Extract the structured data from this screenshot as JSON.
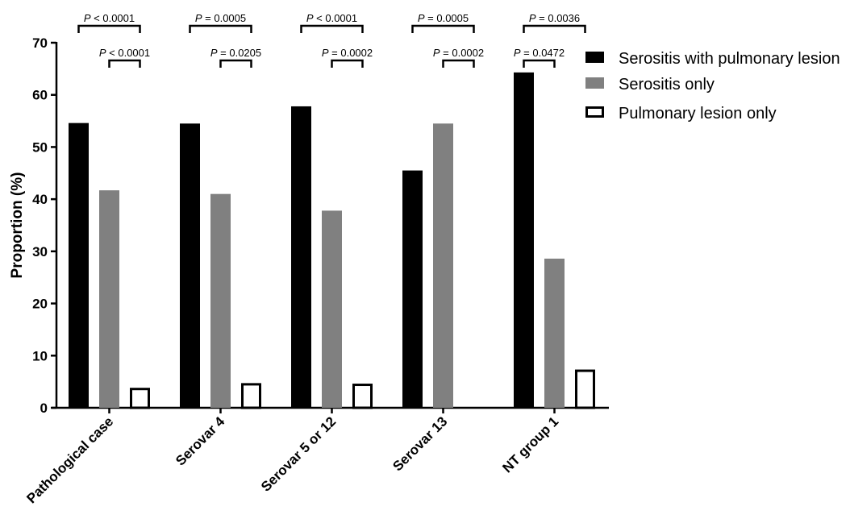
{
  "chart_data": {
    "type": "bar",
    "title": "",
    "xlabel": "",
    "ylabel": "Proportion (%)",
    "ylim": [
      0,
      70
    ],
    "yticks": [
      0,
      10,
      20,
      30,
      40,
      50,
      60,
      70
    ],
    "grid": false,
    "legend_position": "top-right",
    "categories": [
      "Pathological case",
      "Serovar 4",
      "Serovar 5 or 12",
      "Serovar 13",
      "NT group 1"
    ],
    "series": [
      {
        "name": "Serositis with pulmonary lesion",
        "values": [
          54.6,
          54.5,
          57.8,
          45.5,
          64.3
        ],
        "color": "#000000",
        "style": "filled"
      },
      {
        "name": "Serositis only",
        "values": [
          41.7,
          41.0,
          37.8,
          54.5,
          28.6
        ],
        "color": "#808080",
        "style": "filled"
      },
      {
        "name": "Pulmonary lesion only",
        "values": [
          3.6,
          4.5,
          4.4,
          0,
          7.1
        ],
        "color": "#000000",
        "style": "outline"
      }
    ],
    "annotations": [
      {
        "category": 0,
        "from": 0,
        "to": 2,
        "level": "upper",
        "italic": "P",
        "rest": " < 0.0001"
      },
      {
        "category": 0,
        "from": 1,
        "to": 2,
        "level": "lower",
        "italic": "P",
        "rest": " < 0.0001"
      },
      {
        "category": 1,
        "from": 0,
        "to": 2,
        "level": "upper",
        "italic": "P",
        "rest": " = 0.0005"
      },
      {
        "category": 1,
        "from": 1,
        "to": 2,
        "level": "lower",
        "italic": "P",
        "rest": " = 0.0205"
      },
      {
        "category": 2,
        "from": 0,
        "to": 2,
        "level": "upper",
        "italic": "P",
        "rest": " < 0.0001"
      },
      {
        "category": 2,
        "from": 1,
        "to": 2,
        "level": "lower",
        "italic": "P",
        "rest": " = 0.0002"
      },
      {
        "category": 3,
        "from": 0,
        "to": 2,
        "level": "upper",
        "italic": "P",
        "rest": " = 0.0005"
      },
      {
        "category": 3,
        "from": 1,
        "to": 2,
        "level": "lower",
        "italic": "P",
        "rest": " = 0.0002"
      },
      {
        "category": 4,
        "from": 0,
        "to": 2,
        "level": "upper",
        "italic": "P",
        "rest": " = 0.0036"
      },
      {
        "category": 4,
        "from": 0,
        "to": 1,
        "level": "lower",
        "italic": "P",
        "rest": " = 0.0472"
      }
    ]
  }
}
